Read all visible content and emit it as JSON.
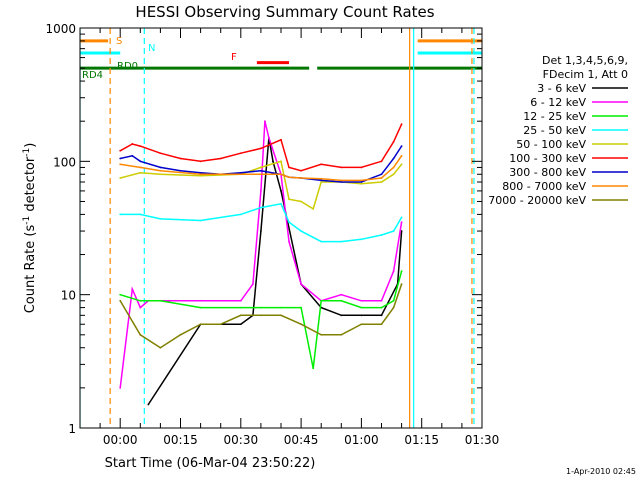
{
  "chart_data": {
    "type": "line",
    "title": "HESSI Observing Summary Count Rates",
    "xlabel": "Start Time (06-Mar-04 23:50:22)",
    "ylabel_main": "Count Rate (s",
    "ylabel_sup": "-1",
    "ylabel_tail": " detector",
    "ylabel_end": ")",
    "yscale": "log",
    "ylim": [
      1,
      1000
    ],
    "xlim": [
      -10,
      90
    ],
    "y_ticks": [
      {
        "v": 1,
        "label": "1"
      },
      {
        "v": 10,
        "label": "10"
      },
      {
        "v": 100,
        "label": "100"
      },
      {
        "v": 1000,
        "label": "1000"
      }
    ],
    "x_ticks": [
      {
        "v": 0,
        "label": "00:00"
      },
      {
        "v": 15,
        "label": "00:15"
      },
      {
        "v": 30,
        "label": "00:30"
      },
      {
        "v": 45,
        "label": "00:45"
      },
      {
        "v": 60,
        "label": "01:00"
      },
      {
        "v": 75,
        "label": "01:15"
      },
      {
        "v": 90,
        "label": "01:30"
      }
    ],
    "legend_header": [
      "Det 1,3,4,5,6,9,",
      "FDecim 1, Att 0"
    ],
    "legend_position": "right",
    "series": [
      {
        "name": "3 - 6 keV",
        "color": "#000000",
        "x": [
          7,
          20,
          30,
          33,
          35,
          37,
          38,
          40,
          45,
          50,
          55,
          60,
          65,
          69,
          70
        ],
        "y": [
          1.5,
          6,
          6,
          7,
          30,
          150,
          100,
          60,
          12,
          8,
          7,
          7,
          7,
          12,
          30
        ]
      },
      {
        "name": "6 - 12 keV",
        "color": "#ff00ff",
        "x": [
          0,
          3,
          5,
          7,
          20,
          30,
          33,
          35,
          36,
          37,
          40,
          42,
          45,
          50,
          55,
          60,
          65,
          68,
          70
        ],
        "y": [
          2,
          11,
          8,
          9,
          9,
          9,
          12,
          60,
          200,
          150,
          80,
          25,
          12,
          9,
          10,
          9,
          9,
          15,
          35
        ]
      },
      {
        "name": "12 - 25 keV",
        "color": "#00ee00",
        "x": [
          0,
          5,
          10,
          20,
          30,
          35,
          40,
          45,
          48,
          50,
          55,
          60,
          65,
          68,
          70
        ],
        "y": [
          10,
          9,
          9,
          8,
          8,
          8,
          8,
          8,
          2.8,
          9,
          9,
          8,
          8,
          9,
          15
        ]
      },
      {
        "name": "25 - 50 keV",
        "color": "#00ffff",
        "x": [
          0,
          5,
          10,
          20,
          30,
          35,
          40,
          42,
          45,
          50,
          55,
          60,
          65,
          68,
          70
        ],
        "y": [
          40,
          40,
          37,
          36,
          40,
          45,
          48,
          35,
          30,
          25,
          25,
          26,
          28,
          30,
          38
        ]
      },
      {
        "name": "50 - 100 keV",
        "color": "#cccc00",
        "x": [
          0,
          5,
          10,
          20,
          30,
          35,
          40,
          42,
          45,
          48,
          50,
          55,
          60,
          65,
          68,
          70
        ],
        "y": [
          75,
          82,
          80,
          78,
          80,
          90,
          100,
          52,
          50,
          44,
          70,
          70,
          68,
          70,
          80,
          95
        ]
      },
      {
        "name": "100 - 300 keV",
        "color": "#ff0000",
        "x": [
          0,
          3,
          5,
          10,
          15,
          20,
          25,
          30,
          35,
          40,
          42,
          45,
          50,
          55,
          60,
          65,
          68,
          70
        ],
        "y": [
          120,
          135,
          130,
          115,
          105,
          100,
          105,
          115,
          125,
          145,
          90,
          85,
          95,
          90,
          90,
          100,
          140,
          190
        ]
      },
      {
        "name": "300 - 800 keV",
        "color": "#0000cc",
        "x": [
          0,
          3,
          5,
          10,
          15,
          20,
          25,
          30,
          35,
          40,
          42,
          45,
          50,
          55,
          60,
          65,
          68,
          70
        ],
        "y": [
          105,
          110,
          100,
          90,
          85,
          82,
          80,
          82,
          85,
          80,
          76,
          75,
          72,
          70,
          70,
          80,
          105,
          130
        ]
      },
      {
        "name": "800 - 7000 keV",
        "color": "#ff8800",
        "x": [
          0,
          5,
          10,
          20,
          30,
          35,
          40,
          42,
          45,
          50,
          55,
          60,
          65,
          68,
          70
        ],
        "y": [
          95,
          90,
          85,
          80,
          80,
          80,
          80,
          76,
          75,
          74,
          72,
          72,
          75,
          90,
          110
        ]
      },
      {
        "name": "7000 - 20000 keV",
        "color": "#808000",
        "x": [
          0,
          5,
          10,
          15,
          20,
          25,
          30,
          35,
          40,
          45,
          50,
          55,
          60,
          65,
          68,
          70
        ],
        "y": [
          9,
          5,
          4,
          5,
          6,
          6,
          7,
          7,
          7,
          6,
          5,
          5,
          6,
          6,
          8,
          12
        ]
      }
    ],
    "annotations": [
      {
        "label": "S",
        "color": "#ff8800"
      },
      {
        "label": "N",
        "color": "#00ffff"
      },
      {
        "label": "F",
        "color": "#ff0000"
      },
      {
        "label": "RD0",
        "color": "#007700"
      },
      {
        "label": "RD4",
        "color": "#007700"
      }
    ],
    "state_bars": [
      {
        "state": "S",
        "color": "#ff8800",
        "y": 800,
        "segments": [
          [
            -10,
            -3
          ],
          [
            74,
            90
          ]
        ]
      },
      {
        "state": "N",
        "color": "#00ffff",
        "y": 650,
        "segments": [
          [
            -10,
            0
          ],
          [
            74,
            90
          ]
        ]
      },
      {
        "state": "F",
        "color": "#ff0000",
        "y": 550,
        "segments": [
          [
            34,
            42
          ]
        ]
      },
      {
        "state": "RD",
        "color": "#007700",
        "y": 500,
        "segments": [
          [
            -10,
            42
          ],
          [
            42,
            47
          ],
          [
            49,
            90
          ]
        ]
      }
    ],
    "vertical_markers": [
      {
        "x": -10,
        "color": "#00ffff",
        "style": "solid"
      },
      {
        "x": -2.5,
        "color": "#ff8800",
        "style": "dashed"
      },
      {
        "x": 6,
        "color": "#00ffff",
        "style": "dashed"
      },
      {
        "x": 72,
        "color": "#ff8800",
        "style": "solid"
      },
      {
        "x": 73,
        "color": "#00ffff",
        "style": "solid"
      },
      {
        "x": 87.5,
        "color": "#ff8800",
        "style": "dashed"
      },
      {
        "x": 88,
        "color": "#00ffff",
        "style": "dashed"
      }
    ],
    "footer_date": "1-Apr-2010 02:45"
  }
}
